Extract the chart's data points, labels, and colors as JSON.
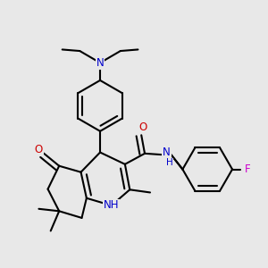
{
  "bg_color": "#e8e8e8",
  "bond_color": "#000000",
  "bond_width": 1.5,
  "atom_colors": {
    "N": "#0000cc",
    "O": "#cc0000",
    "F": "#cc00cc",
    "C": "#000000"
  },
  "font_size_atom": 8.5,
  "font_size_h": 7.5
}
